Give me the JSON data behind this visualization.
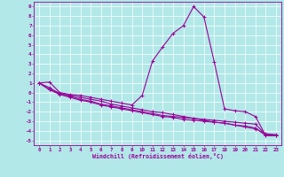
{
  "xlabel": "Windchill (Refroidissement éolien,°C)",
  "background_color": "#b2e8e8",
  "grid_color": "#ffffff",
  "line_color": "#990099",
  "x": [
    0,
    1,
    2,
    3,
    4,
    5,
    6,
    7,
    8,
    9,
    10,
    11,
    12,
    13,
    14,
    15,
    16,
    17,
    18,
    19,
    20,
    21,
    22,
    23
  ],
  "line1": [
    1.0,
    1.1,
    0.0,
    -0.2,
    -0.3,
    -0.5,
    -0.7,
    -0.9,
    -1.1,
    -1.3,
    -0.3,
    3.3,
    4.8,
    6.2,
    7.0,
    9.0,
    7.9,
    3.2,
    -1.7,
    -1.9,
    -2.0,
    -2.5,
    -4.5,
    -4.5
  ],
  "line2": [
    1.0,
    0.5,
    -0.1,
    -0.3,
    -0.5,
    -0.7,
    -0.9,
    -1.2,
    -1.4,
    -1.6,
    -1.8,
    -2.0,
    -2.1,
    -2.3,
    -2.5,
    -2.7,
    -2.9,
    -3.1,
    -3.2,
    -3.4,
    -3.6,
    -3.8,
    -4.3,
    -4.4
  ],
  "line3": [
    1.0,
    0.3,
    -0.1,
    -0.4,
    -0.7,
    -0.9,
    -1.2,
    -1.4,
    -1.6,
    -1.8,
    -2.0,
    -2.2,
    -2.4,
    -2.5,
    -2.6,
    -2.7,
    -2.8,
    -2.9,
    -3.0,
    -3.1,
    -3.2,
    -3.3,
    -4.4,
    -4.5
  ],
  "line4": [
    1.0,
    0.3,
    -0.2,
    -0.5,
    -0.8,
    -1.0,
    -1.3,
    -1.5,
    -1.7,
    -1.9,
    -2.1,
    -2.3,
    -2.5,
    -2.6,
    -2.8,
    -2.9,
    -3.0,
    -3.1,
    -3.2,
    -3.4,
    -3.5,
    -3.7,
    -4.5,
    -4.5
  ],
  "ylim": [
    -5.5,
    9.5
  ],
  "xlim": [
    -0.5,
    23.5
  ],
  "yticks": [
    -5,
    -4,
    -3,
    -2,
    -1,
    0,
    1,
    2,
    3,
    4,
    5,
    6,
    7,
    8,
    9
  ],
  "xticks": [
    0,
    1,
    2,
    3,
    4,
    5,
    6,
    7,
    8,
    9,
    10,
    11,
    12,
    13,
    14,
    15,
    16,
    17,
    18,
    19,
    20,
    21,
    22,
    23
  ]
}
